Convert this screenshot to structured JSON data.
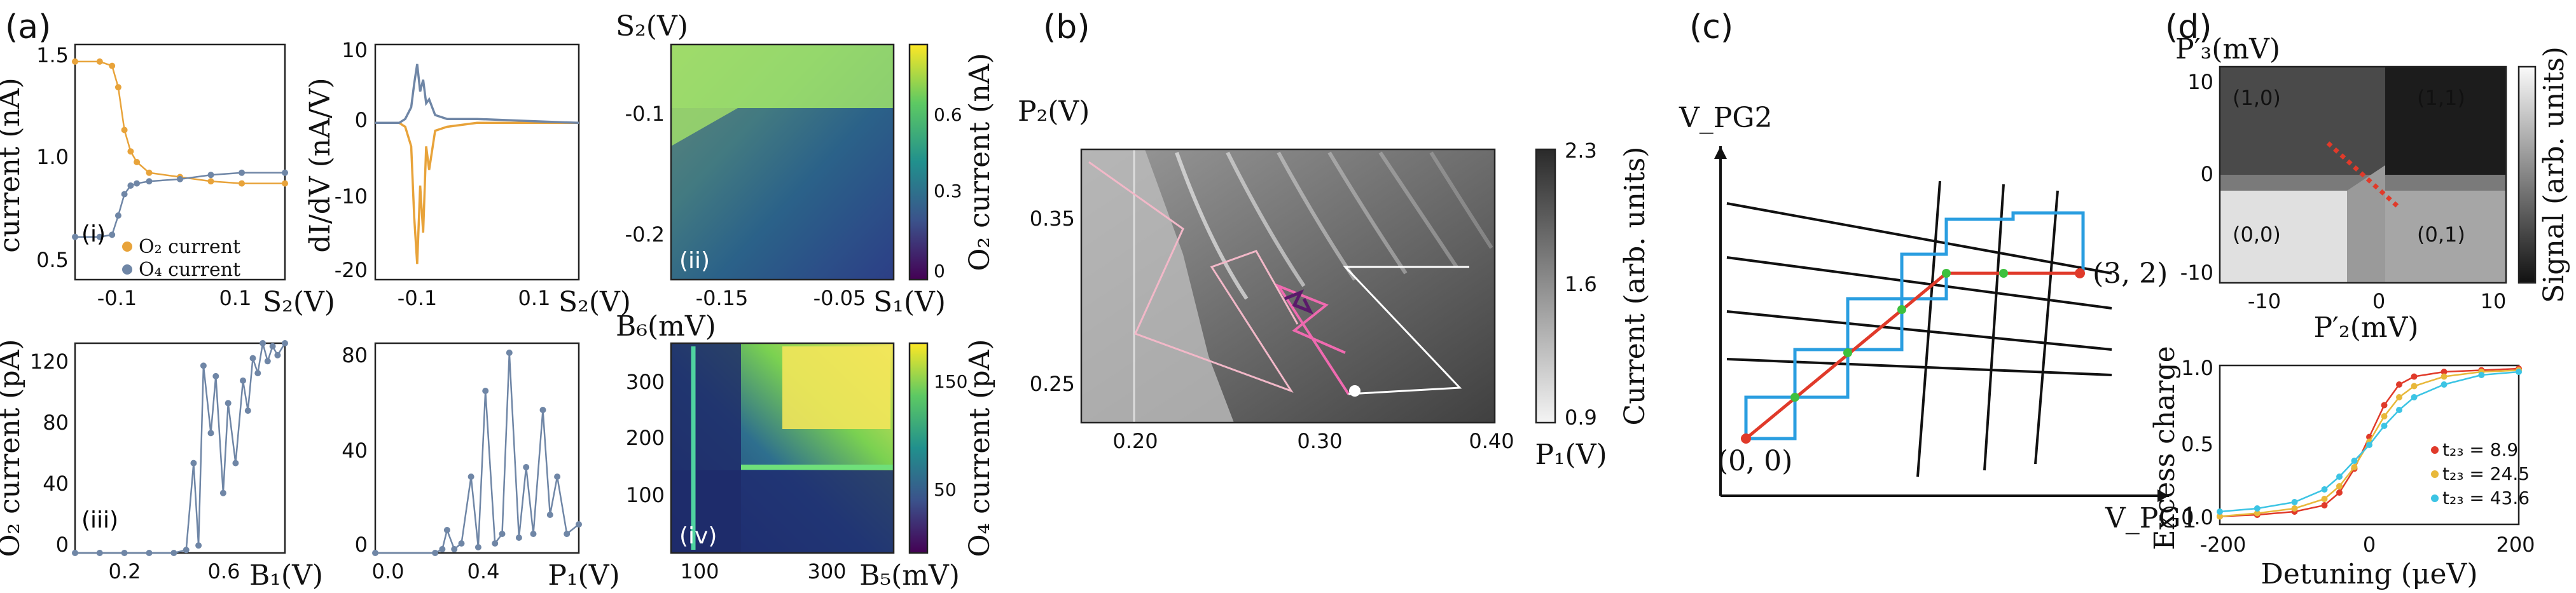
{
  "panels": {
    "a": {
      "label": "(a)"
    },
    "b": {
      "label": "(b)"
    },
    "c": {
      "label": "(c)"
    },
    "d": {
      "label": "(d)"
    }
  },
  "colors": {
    "orange": "#e8a33a",
    "slate": "#6f86a6",
    "red": "#e03a2a",
    "blue": "#2a9ee0",
    "green": "#3ec03e",
    "cyan": "#3cc4e4"
  },
  "chart_data": [
    {
      "id": "a-i",
      "type": "line",
      "xlabel": "S₂(V)",
      "ylabel": "current (nA)",
      "inset": "(i)",
      "xlim": [
        -0.17,
        0.17
      ],
      "ylim": [
        0.5,
        1.6
      ],
      "xticks": [
        "-0.1",
        "0.1"
      ],
      "yticks": [
        "0.5",
        "1.0",
        "1.5"
      ],
      "legend_position": "lower-left",
      "series": [
        {
          "name": "O₂ current",
          "color": "#e8a33a",
          "x": [
            -0.17,
            -0.13,
            -0.11,
            -0.1,
            -0.09,
            -0.08,
            -0.07,
            -0.05,
            0.0,
            0.05,
            0.1,
            0.17
          ],
          "y": [
            1.52,
            1.52,
            1.5,
            1.4,
            1.2,
            1.1,
            1.05,
            1.0,
            0.98,
            0.96,
            0.95,
            0.95
          ]
        },
        {
          "name": "O₄ current",
          "color": "#6f86a6",
          "x": [
            -0.17,
            -0.13,
            -0.11,
            -0.1,
            -0.09,
            -0.08,
            -0.07,
            -0.05,
            0.0,
            0.05,
            0.1,
            0.17
          ],
          "y": [
            0.7,
            0.7,
            0.71,
            0.8,
            0.9,
            0.94,
            0.95,
            0.96,
            0.97,
            0.99,
            1.0,
            1.0
          ]
        }
      ]
    },
    {
      "id": "a-dIdV",
      "type": "line",
      "xlabel": "S₂(V)",
      "ylabel": "dI/dV (nA/V)",
      "xlim": [
        -0.17,
        0.17
      ],
      "ylim": [
        -20,
        10
      ],
      "xticks": [
        "-0.1",
        "0.1"
      ],
      "yticks": [
        "10",
        "0",
        "-10",
        "-20"
      ],
      "series": [
        {
          "name": "",
          "color": "#e8a33a",
          "x": [
            -0.17,
            -0.13,
            -0.12,
            -0.11,
            -0.105,
            -0.1,
            -0.095,
            -0.09,
            -0.085,
            -0.08,
            -0.07,
            -0.05,
            0.0,
            0.1,
            0.17
          ],
          "y": [
            0,
            0,
            -0.5,
            -3,
            -12,
            -18,
            -8,
            -14,
            -3,
            -6,
            -1,
            -0.5,
            0,
            0,
            0
          ]
        },
        {
          "name": "",
          "color": "#6f86a6",
          "x": [
            -0.17,
            -0.13,
            -0.12,
            -0.11,
            -0.105,
            -0.1,
            -0.095,
            -0.09,
            -0.085,
            -0.08,
            -0.07,
            -0.05,
            0.0,
            0.1,
            0.17
          ],
          "y": [
            0,
            0,
            0.5,
            2,
            5,
            7.5,
            4,
            5.5,
            2.5,
            3,
            1,
            0.5,
            0.5,
            0.2,
            0
          ]
        }
      ]
    },
    {
      "id": "a-ii",
      "type": "heatmap",
      "xlabel": "S₁(V)",
      "ylabel": "S₂(V)",
      "inset": "(ii)",
      "colorbar_label": "O₂ current (nA)",
      "xticks": [
        "-0.15",
        "-0.05"
      ],
      "yticks": [
        "-0.1",
        "-0.2"
      ],
      "colorbar_ticks": [
        "0.6",
        "0.3",
        "0"
      ]
    },
    {
      "id": "a-iii",
      "type": "line",
      "xlabel": "B₁(V)",
      "ylabel": "O₂ current (pA)",
      "inset": "(iii)",
      "xlim": [
        0.0,
        0.85
      ],
      "ylim": [
        0,
        140
      ],
      "xticks": [
        "0.2",
        "0.6"
      ],
      "yticks": [
        "0",
        "40",
        "80",
        "120"
      ],
      "series": [
        {
          "name": "",
          "color": "#6f86a6",
          "x": [
            0.0,
            0.1,
            0.2,
            0.3,
            0.4,
            0.45,
            0.48,
            0.5,
            0.52,
            0.55,
            0.57,
            0.6,
            0.62,
            0.65,
            0.68,
            0.7,
            0.72,
            0.74,
            0.76,
            0.78,
            0.8,
            0.82,
            0.85
          ],
          "y": [
            0,
            0,
            0,
            0,
            0,
            2,
            60,
            5,
            125,
            80,
            118,
            40,
            100,
            60,
            115,
            95,
            130,
            120,
            140,
            128,
            138,
            132,
            140
          ]
        }
      ]
    },
    {
      "id": "a-P1",
      "type": "line",
      "xlabel": "P₁(V)",
      "ylabel": "",
      "xlim": [
        0.0,
        0.85
      ],
      "ylim": [
        0,
        110
      ],
      "xticks": [
        "0.0",
        "0.4"
      ],
      "yticks": [
        "0",
        "40",
        "80"
      ],
      "series": [
        {
          "name": "",
          "color": "#6f86a6",
          "x": [
            0.0,
            0.25,
            0.28,
            0.3,
            0.33,
            0.36,
            0.4,
            0.43,
            0.46,
            0.5,
            0.53,
            0.56,
            0.6,
            0.63,
            0.66,
            0.7,
            0.73,
            0.76,
            0.8,
            0.85
          ],
          "y": [
            0,
            0,
            2,
            12,
            2,
            5,
            40,
            3,
            85,
            5,
            10,
            105,
            8,
            45,
            10,
            75,
            20,
            40,
            10,
            15
          ]
        }
      ]
    },
    {
      "id": "a-iv",
      "type": "heatmap",
      "xlabel": "B₅(mV)",
      "ylabel": "B₆(mV)",
      "inset": "(iv)",
      "colorbar_label": "O₄ current (pA)",
      "xticks": [
        "100",
        "300"
      ],
      "yticks": [
        "300",
        "200",
        "100"
      ],
      "colorbar_ticks": [
        "150",
        "50"
      ]
    },
    {
      "id": "b",
      "type": "heatmap",
      "xlabel": "P₁(V)",
      "ylabel": "P₂(V)",
      "colorbar_label": "Current (arb. units)",
      "xticks": [
        "0.20",
        "0.30",
        "0.40"
      ],
      "yticks": [
        "0.35",
        "0.25"
      ],
      "colorbar_ticks": [
        "2.3",
        "1.6",
        "0.9"
      ]
    },
    {
      "id": "c",
      "type": "diagram",
      "xlabel": "V_PG1",
      "ylabel": "V_PG2",
      "start_label": "(0, 0)",
      "end_label": "(3, 2)"
    },
    {
      "id": "d-top",
      "type": "heatmap",
      "xlabel": "P′₂(mV)",
      "ylabel": "P′₃(mV)",
      "colorbar_label": "Signal (arb. units)",
      "xticks": [
        "-10",
        "0",
        "10"
      ],
      "yticks": [
        "10",
        "0",
        "-10"
      ],
      "regions": [
        "(1,0)",
        "(1,1)",
        "(0,0)",
        "(0,1)"
      ]
    },
    {
      "id": "d-bottom",
      "type": "line",
      "xlabel": "Detuning (μeV)",
      "ylabel": "Excess charge",
      "xlim": [
        -200,
        200
      ],
      "ylim": [
        0,
        1.0
      ],
      "xticks": [
        "-200",
        "0",
        "200"
      ],
      "yticks": [
        "1.0",
        "0.5",
        "0.0"
      ],
      "legend_position": "right",
      "series": [
        {
          "name": "t₂₃ = 8.9",
          "color": "#e03a2a",
          "x": [
            -200,
            -150,
            -100,
            -60,
            -40,
            -20,
            0,
            20,
            40,
            60,
            100,
            150,
            200
          ],
          "y": [
            0.05,
            0.06,
            0.08,
            0.12,
            0.2,
            0.35,
            0.55,
            0.75,
            0.88,
            0.93,
            0.96,
            0.97,
            0.98
          ]
        },
        {
          "name": "t₂₃ = 24.5",
          "color": "#e8b83a",
          "x": [
            -200,
            -150,
            -100,
            -60,
            -40,
            -20,
            0,
            20,
            40,
            60,
            100,
            150,
            200
          ],
          "y": [
            0.05,
            0.07,
            0.1,
            0.16,
            0.24,
            0.36,
            0.52,
            0.68,
            0.8,
            0.87,
            0.93,
            0.96,
            0.97
          ]
        },
        {
          "name": "t₂₃ = 43.6",
          "color": "#3cc4e4",
          "x": [
            -200,
            -150,
            -100,
            -60,
            -40,
            -20,
            0,
            20,
            40,
            60,
            100,
            150,
            200
          ],
          "y": [
            0.08,
            0.1,
            0.14,
            0.22,
            0.3,
            0.4,
            0.5,
            0.62,
            0.72,
            0.8,
            0.88,
            0.94,
            0.96
          ]
        }
      ]
    }
  ]
}
